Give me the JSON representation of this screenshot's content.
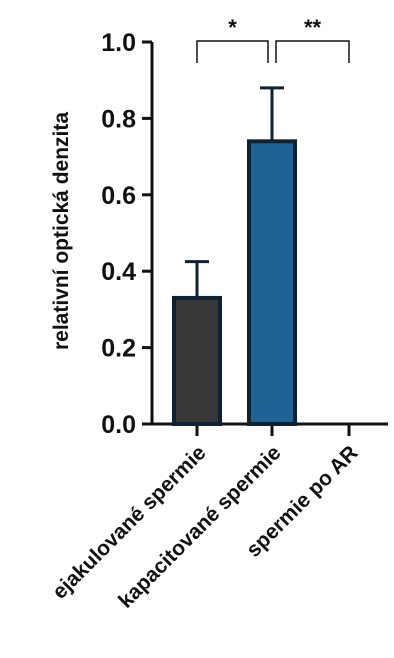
{
  "chart_data": {
    "type": "bar",
    "ylabel": "relativní optická denzita",
    "xlabel": "",
    "ylim": [
      0,
      1.0
    ],
    "yticks": [
      0.0,
      0.2,
      0.4,
      0.6,
      0.8,
      1.0
    ],
    "ytick_labels": [
      "0.0",
      "0.2",
      "0.4",
      "0.6",
      "0.8",
      "1.0"
    ],
    "categories": [
      "ejakulované spermie",
      "kapacitované spermie",
      "spermie po AR"
    ],
    "values": [
      0.33,
      0.74,
      0.0
    ],
    "errors": [
      0.095,
      0.14,
      0.0
    ],
    "bar_colors": [
      "#383838",
      "#1f6396",
      "#ffffff"
    ],
    "bar_edge_color": "#0d2233",
    "grid": false,
    "significance": [
      {
        "from": 0,
        "to": 1,
        "label": "*"
      },
      {
        "from": 1,
        "to": 2,
        "label": "**"
      }
    ]
  }
}
